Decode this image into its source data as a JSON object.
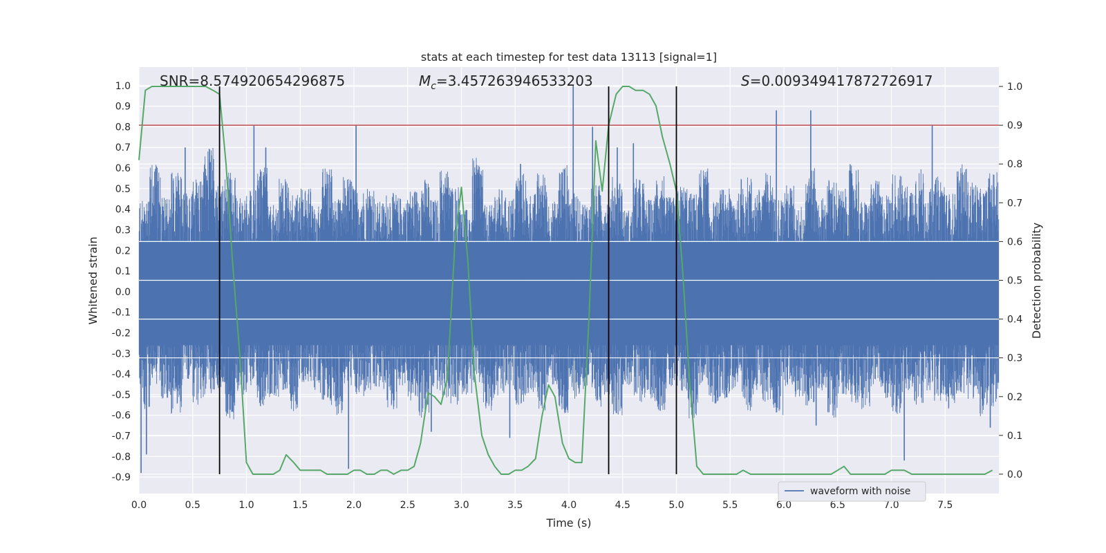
{
  "chart_data": {
    "type": "line",
    "title": "stats at each timestep for test data 13113 [signal=1]",
    "xlabel": "Time (s)",
    "ylabel_left": "Whitened strain",
    "ylabel_right": "Detection probability",
    "xlim": [
      0.0,
      8.0
    ],
    "ylim_left": [
      -0.98,
      1.09
    ],
    "ylim_right": [
      -0.05,
      1.05
    ],
    "xticks": [
      "0.0",
      "0.5",
      "1.0",
      "1.5",
      "2.0",
      "2.5",
      "3.0",
      "3.5",
      "4.0",
      "4.5",
      "5.0",
      "5.5",
      "6.0",
      "6.5",
      "7.0",
      "7.5"
    ],
    "yticks_left": [
      "1.0",
      "0.9",
      "0.8",
      "0.7",
      "0.6",
      "0.5",
      "0.4",
      "0.3",
      "0.2",
      "0.1",
      "0.0",
      "-0.1",
      "-0.2",
      "-0.3",
      "-0.4",
      "-0.5",
      "-0.6",
      "-0.7",
      "-0.8",
      "-0.9"
    ],
    "yticks_right": [
      "1.0",
      "0.9",
      "0.8",
      "0.7",
      "0.6",
      "0.5",
      "0.4",
      "0.3",
      "0.2",
      "0.1",
      "0.0"
    ],
    "annotations": {
      "snr": "SNR=8.574920654296875",
      "mc_prefix": "M",
      "mc_sub": "c",
      "mc_value": "=3.457263946533203",
      "s_prefix": "S",
      "s_value": "=0.009349417872726917"
    },
    "legend": {
      "label": "waveform with noise",
      "placement": "bottom-right"
    },
    "threshold_line": {
      "axis": "right",
      "value": 0.9,
      "color": "#c44e52"
    },
    "vertical_markers": [
      0.75,
      4.37,
      5.0
    ],
    "waveform_with_noise": {
      "color": "#4c72b0",
      "envelope_top": [
        0.44,
        0.62,
        0.46,
        0.58,
        0.48,
        0.55,
        0.7,
        0.52,
        0.58,
        0.46,
        0.5,
        0.62,
        0.42,
        0.55,
        0.48,
        0.5,
        0.42,
        0.62,
        0.45,
        0.56,
        0.5,
        0.52,
        0.44,
        0.48,
        0.46,
        0.5,
        0.55,
        0.45,
        0.6,
        0.52,
        0.4,
        0.65,
        0.42,
        0.5,
        0.46,
        0.58,
        0.48,
        0.58,
        0.44,
        0.62,
        0.48,
        0.44,
        0.52,
        0.46,
        0.56,
        0.4,
        0.55,
        0.45,
        0.58,
        0.46,
        0.52,
        0.48,
        0.6,
        0.44,
        0.5,
        0.48,
        0.56,
        0.5,
        0.58,
        0.46,
        0.52,
        0.42,
        0.6,
        0.46,
        0.55,
        0.5,
        0.62,
        0.44,
        0.54,
        0.48,
        0.58,
        0.52,
        0.6,
        0.5,
        0.56,
        0.48,
        0.62,
        0.54,
        0.5,
        0.58
      ],
      "envelope_bottom": [
        -0.58,
        -0.46,
        -0.52,
        -0.6,
        -0.44,
        -0.55,
        -0.5,
        -0.48,
        -0.62,
        -0.5,
        -0.46,
        -0.56,
        -0.52,
        -0.48,
        -0.58,
        -0.44,
        -0.5,
        -0.55,
        -0.6,
        -0.46,
        -0.52,
        -0.5,
        -0.48,
        -0.58,
        -0.46,
        -0.54,
        -0.62,
        -0.48,
        -0.52,
        -0.56,
        -0.5,
        -0.46,
        -0.6,
        -0.52,
        -0.48,
        -0.55,
        -0.5,
        -0.58,
        -0.46,
        -0.62,
        -0.52,
        -0.48,
        -0.56,
        -0.5,
        -0.6,
        -0.46,
        -0.54,
        -0.52,
        -0.58,
        -0.48,
        -0.5,
        -0.62,
        -0.46,
        -0.56,
        -0.52,
        -0.48,
        -0.58,
        -0.5,
        -0.54,
        -0.6,
        -0.46,
        -0.52,
        -0.56,
        -0.48,
        -0.62,
        -0.5,
        -0.54,
        -0.58,
        -0.46,
        -0.52,
        -0.6,
        -0.5,
        -0.56,
        -0.48,
        -0.54,
        -0.58,
        -0.5,
        -0.52,
        -0.62,
        -0.56
      ],
      "spikes_up": [
        [
          0.43,
          0.7
        ],
        [
          0.75,
          0.98
        ],
        [
          1.07,
          0.81
        ],
        [
          1.18,
          0.7
        ],
        [
          2.02,
          0.81
        ],
        [
          4.04,
          1.0
        ],
        [
          5.93,
          0.88
        ],
        [
          6.25,
          0.88
        ],
        [
          7.38,
          0.81
        ],
        [
          4.22,
          0.8
        ],
        [
          3.55,
          0.62
        ],
        [
          4.6,
          0.72
        ],
        [
          4.45,
          0.7
        ]
      ],
      "spikes_down": [
        [
          0.02,
          -0.88
        ],
        [
          0.07,
          -0.79
        ],
        [
          1.95,
          -0.86
        ],
        [
          2.72,
          -0.68
        ],
        [
          3.45,
          -0.71
        ],
        [
          7.12,
          -0.82
        ],
        [
          7.92,
          -0.66
        ],
        [
          6.3,
          -0.65
        ]
      ]
    },
    "detection_probability": {
      "color": "#55a868",
      "x": [
        0.0,
        0.06,
        0.12,
        0.19,
        0.25,
        0.31,
        0.37,
        0.44,
        0.5,
        0.56,
        0.62,
        0.69,
        0.75,
        0.81,
        0.87,
        0.94,
        1.0,
        1.06,
        1.12,
        1.19,
        1.25,
        1.31,
        1.37,
        1.44,
        1.5,
        1.56,
        1.62,
        1.69,
        1.75,
        1.81,
        1.87,
        1.94,
        2.0,
        2.06,
        2.12,
        2.19,
        2.25,
        2.31,
        2.37,
        2.44,
        2.5,
        2.56,
        2.62,
        2.69,
        2.75,
        2.81,
        2.87,
        2.94,
        3.0,
        3.06,
        3.12,
        3.19,
        3.25,
        3.31,
        3.37,
        3.44,
        3.5,
        3.56,
        3.62,
        3.69,
        3.75,
        3.81,
        3.87,
        3.94,
        4.0,
        4.06,
        4.12,
        4.19,
        4.25,
        4.31,
        4.37,
        4.44,
        4.5,
        4.56,
        4.62,
        4.69,
        4.75,
        4.81,
        4.87,
        4.94,
        5.0,
        5.06,
        5.12,
        5.19,
        5.25,
        5.31,
        5.37,
        5.44,
        5.5,
        5.56,
        5.62,
        5.69,
        5.75,
        5.81,
        5.87,
        5.94,
        6.0,
        6.06,
        6.12,
        6.19,
        6.25,
        6.31,
        6.37,
        6.44,
        6.5,
        6.56,
        6.62,
        6.69,
        6.75,
        6.81,
        6.87,
        6.94,
        7.0,
        7.06,
        7.12,
        7.19,
        7.25,
        7.31,
        7.37,
        7.44,
        7.5,
        7.56,
        7.62,
        7.69,
        7.75,
        7.81,
        7.87,
        7.94
      ],
      "y": [
        0.81,
        0.99,
        1.0,
        1.0,
        1.0,
        1.0,
        1.0,
        1.0,
        1.0,
        1.0,
        1.0,
        0.99,
        0.98,
        0.8,
        0.55,
        0.3,
        0.03,
        0.0,
        0.0,
        0.0,
        0.0,
        0.01,
        0.05,
        0.03,
        0.01,
        0.01,
        0.01,
        0.01,
        0.0,
        0.0,
        0.0,
        0.0,
        0.01,
        0.01,
        0.0,
        0.0,
        0.01,
        0.01,
        0.0,
        0.01,
        0.01,
        0.02,
        0.08,
        0.21,
        0.2,
        0.18,
        0.25,
        0.6,
        0.74,
        0.55,
        0.26,
        0.1,
        0.05,
        0.02,
        0.0,
        0.0,
        0.01,
        0.01,
        0.02,
        0.04,
        0.15,
        0.23,
        0.2,
        0.08,
        0.04,
        0.03,
        0.03,
        0.42,
        0.86,
        0.73,
        0.9,
        0.98,
        1.0,
        1.0,
        0.99,
        0.99,
        0.98,
        0.95,
        0.87,
        0.8,
        0.73,
        0.52,
        0.25,
        0.02,
        0.0,
        0.0,
        0.0,
        0.0,
        0.0,
        0.0,
        0.01,
        0.0,
        0.0,
        0.0,
        0.0,
        0.0,
        0.0,
        0.0,
        0.0,
        0.0,
        0.0,
        0.0,
        0.0,
        0.0,
        0.01,
        0.02,
        0.0,
        0.0,
        0.0,
        0.0,
        0.0,
        0.0,
        0.01,
        0.01,
        0.01,
        0.0,
        0.0,
        0.0,
        0.0,
        0.0,
        0.0,
        0.0,
        0.0,
        0.0,
        0.0,
        0.0,
        0.0,
        0.01
      ]
    }
  }
}
